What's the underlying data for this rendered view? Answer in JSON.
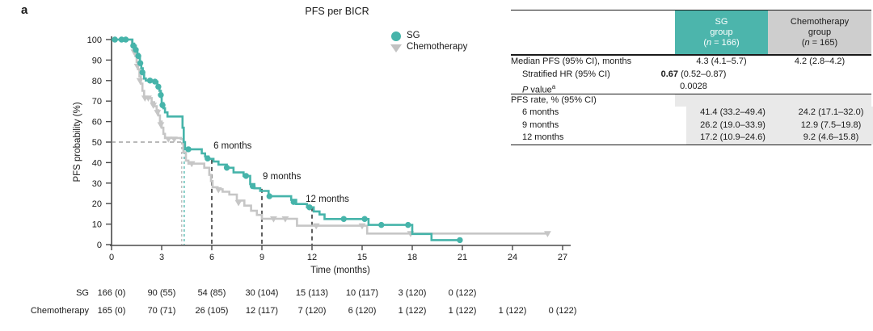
{
  "panel_label": "a",
  "colors": {
    "sg": "#46b4aa",
    "chemo_curve": "#c6c6c6",
    "sg_header_bg": "#4cb5ac",
    "chemo_header_bg": "#cecece",
    "section_bg": "#e9e9e9",
    "axis": "#4a4a4a",
    "dash_gray": "#909090",
    "dash_dark": "#2a2a2a"
  },
  "chart_data": {
    "type": "line",
    "subtype": "kaplan-meier-step",
    "title": "PFS per BICR",
    "xlabel": "Time (months)",
    "ylabel": "PFS probability (%)",
    "xlim": [
      0,
      27
    ],
    "ylim": [
      0,
      100
    ],
    "xticks": [
      0,
      3,
      6,
      9,
      12,
      15,
      18,
      21,
      24,
      27
    ],
    "yticks": [
      0,
      10,
      20,
      30,
      40,
      50,
      60,
      70,
      80,
      90,
      100
    ],
    "grid": false,
    "legend_position": "top-inside",
    "series": [
      {
        "name": "Chemotherapy",
        "marker": "triangle-down",
        "color": "#c6c6c6",
        "steps": [
          [
            0,
            100
          ],
          [
            1.15,
            100
          ],
          [
            1.22,
            97.5
          ],
          [
            1.32,
            95
          ],
          [
            1.42,
            92
          ],
          [
            1.5,
            89
          ],
          [
            1.58,
            85.5
          ],
          [
            1.67,
            82
          ],
          [
            1.75,
            78.5
          ],
          [
            1.85,
            75
          ],
          [
            1.95,
            72
          ],
          [
            2.3,
            71.5
          ],
          [
            2.4,
            69.5
          ],
          [
            2.55,
            67.5
          ],
          [
            2.7,
            65.5
          ],
          [
            2.8,
            63
          ],
          [
            2.9,
            60
          ],
          [
            3.0,
            57
          ],
          [
            3.1,
            54
          ],
          [
            3.2,
            52
          ],
          [
            4.15,
            51.5
          ],
          [
            4.3,
            45
          ],
          [
            4.45,
            41
          ],
          [
            4.6,
            39.5
          ],
          [
            5.4,
            39.5
          ],
          [
            5.55,
            37.5
          ],
          [
            5.85,
            34
          ],
          [
            5.95,
            31
          ],
          [
            6.05,
            28
          ],
          [
            6.35,
            27
          ],
          [
            6.65,
            25.8
          ],
          [
            7.05,
            24.4
          ],
          [
            7.5,
            21.5
          ],
          [
            7.95,
            19
          ],
          [
            8.35,
            16.5
          ],
          [
            8.7,
            14.5
          ],
          [
            9.0,
            12.6
          ],
          [
            11.0,
            12.6
          ],
          [
            11.1,
            9.2
          ],
          [
            15.2,
            9.2
          ],
          [
            15.3,
            5.4
          ],
          [
            26.2,
            5.4
          ]
        ],
        "censor_marks": [
          [
            1.35,
            94
          ],
          [
            1.55,
            87
          ],
          [
            1.7,
            80
          ],
          [
            2.0,
            71.5
          ],
          [
            2.2,
            71.5
          ],
          [
            2.5,
            68
          ],
          [
            2.75,
            64.5
          ],
          [
            2.95,
            58.5
          ],
          [
            3.4,
            51.5
          ],
          [
            3.75,
            51.5
          ],
          [
            4.8,
            39.5
          ],
          [
            6.4,
            26.8
          ],
          [
            7.6,
            20.5
          ],
          [
            9.7,
            12.6
          ],
          [
            10.4,
            12.6
          ],
          [
            12.25,
            9.2
          ],
          [
            15.0,
            9.2
          ],
          [
            17.9,
            5.4
          ],
          [
            26.1,
            5.4
          ]
        ]
      },
      {
        "name": "SG",
        "marker": "circle",
        "color": "#46b4aa",
        "steps": [
          [
            0,
            100
          ],
          [
            1.2,
            100
          ],
          [
            1.25,
            98
          ],
          [
            1.35,
            97
          ],
          [
            1.45,
            95
          ],
          [
            1.55,
            93
          ],
          [
            1.62,
            91
          ],
          [
            1.7,
            88.5
          ],
          [
            1.78,
            86
          ],
          [
            1.87,
            83.5
          ],
          [
            1.95,
            81
          ],
          [
            2.05,
            80
          ],
          [
            2.6,
            79.5
          ],
          [
            2.75,
            77.5
          ],
          [
            2.87,
            75
          ],
          [
            2.95,
            72
          ],
          [
            3.0,
            69
          ],
          [
            3.1,
            66.5
          ],
          [
            3.2,
            64.5
          ],
          [
            3.35,
            62.5
          ],
          [
            4.2,
            62.5
          ],
          [
            4.25,
            57
          ],
          [
            4.32,
            50
          ],
          [
            4.4,
            46.5
          ],
          [
            5.3,
            46.5
          ],
          [
            5.4,
            44.5
          ],
          [
            5.6,
            43
          ],
          [
            5.8,
            41.8
          ],
          [
            6.1,
            40.5
          ],
          [
            6.4,
            39
          ],
          [
            6.9,
            37.5
          ],
          [
            7.3,
            35.2
          ],
          [
            7.9,
            33.5
          ],
          [
            8.3,
            29.5
          ],
          [
            8.55,
            27.5
          ],
          [
            8.9,
            26.2
          ],
          [
            9.4,
            23.6
          ],
          [
            10.75,
            21.8
          ],
          [
            11.05,
            19.8
          ],
          [
            11.7,
            18.2
          ],
          [
            12.1,
            16.2
          ],
          [
            12.45,
            14.7
          ],
          [
            12.75,
            12.5
          ],
          [
            15.3,
            12.5
          ],
          [
            15.38,
            9.6
          ],
          [
            17.9,
            9.6
          ],
          [
            18.0,
            5.2
          ],
          [
            19.1,
            5.2
          ],
          [
            19.15,
            2.2
          ],
          [
            20.9,
            2.2
          ]
        ],
        "censor_marks": [
          [
            0.2,
            100
          ],
          [
            0.6,
            100
          ],
          [
            0.85,
            100
          ],
          [
            1.3,
            97
          ],
          [
            1.45,
            95
          ],
          [
            1.6,
            92
          ],
          [
            1.72,
            88.5
          ],
          [
            1.85,
            84
          ],
          [
            2.3,
            80
          ],
          [
            2.6,
            79.5
          ],
          [
            2.8,
            77
          ],
          [
            2.95,
            73
          ],
          [
            3.05,
            68
          ],
          [
            4.6,
            46.5
          ],
          [
            5.75,
            42
          ],
          [
            6.9,
            37.5
          ],
          [
            8.05,
            33.5
          ],
          [
            8.45,
            28.5
          ],
          [
            9.45,
            23.6
          ],
          [
            10.9,
            20.8
          ],
          [
            11.85,
            18.2
          ],
          [
            13.9,
            12.5
          ],
          [
            15.15,
            12.5
          ],
          [
            16.15,
            9.6
          ],
          [
            17.75,
            9.6
          ],
          [
            20.85,
            2.2
          ]
        ]
      }
    ],
    "legend": [
      {
        "label": "SG",
        "marker": "circle",
        "color": "#46b4aa"
      },
      {
        "label": "Chemotherapy",
        "marker": "triangle-down",
        "color": "#c2c2c2"
      }
    ],
    "annotations": [
      {
        "text": "6 months",
        "t": 6.1,
        "v": 50.4
      },
      {
        "text": "9 months",
        "t": 9.05,
        "v": 35.4
      },
      {
        "text": "12 months",
        "t": 11.62,
        "v": 24.4
      }
    ],
    "reference_lines": {
      "median_horizontal": {
        "v": 50,
        "t_end": 4.4
      },
      "median_verticals": [
        {
          "t": 4.2,
          "color": "#b5b5b5",
          "v_top": 50
        },
        {
          "t": 4.35,
          "color": "#46b4aa",
          "v_top": 50
        }
      ],
      "month_verticals": [
        {
          "t": 6,
          "v_top": 41.4
        },
        {
          "t": 9,
          "v_top": 27.2
        },
        {
          "t": 12,
          "v_top": 18.2
        }
      ]
    },
    "risk_table": {
      "rows": [
        {
          "label": "SG",
          "counts": [
            {
              "t": 0,
              "n": "166 (0)"
            },
            {
              "t": 3,
              "n": "90 (55)"
            },
            {
              "t": 6,
              "n": "54 (85)"
            },
            {
              "t": 9,
              "n": "30 (104)"
            },
            {
              "t": 12,
              "n": "15 (113)"
            },
            {
              "t": 15,
              "n": "10 (117)"
            },
            {
              "t": 18,
              "n": "3 (120)"
            },
            {
              "t": 21,
              "n": "0 (122)"
            }
          ]
        },
        {
          "label": "Chemotherapy",
          "counts": [
            {
              "t": 0,
              "n": "165 (0)"
            },
            {
              "t": 3,
              "n": "70 (71)"
            },
            {
              "t": 6,
              "n": "26 (105)"
            },
            {
              "t": 9,
              "n": "12 (117)"
            },
            {
              "t": 12,
              "n": "7 (120)"
            },
            {
              "t": 15,
              "n": "6 (120)"
            },
            {
              "t": 18,
              "n": "1 (122)"
            },
            {
              "t": 21,
              "n": "1 (122)"
            },
            {
              "t": 24,
              "n": "1 (122)"
            },
            {
              "t": 27,
              "n": "0 (122)"
            }
          ]
        }
      ]
    }
  },
  "stats_table": {
    "header": {
      "groups": [
        {
          "lines": [
            "SG",
            "group",
            "(n = 166)"
          ],
          "bg": "#4cb5ac",
          "color": "#ffffff"
        },
        {
          "lines": [
            "Chemotherapy",
            "group",
            "(n = 165)"
          ],
          "bg": "#cecece",
          "color": "#1a1a1a"
        }
      ]
    },
    "section1": [
      {
        "label": "Median PFS (95% CI), months",
        "indent": false,
        "sg": "4.3 (4.1–5.7)",
        "chemo": "4.2 (2.8–4.2)"
      },
      {
        "label": "Stratified HR (95% CI)",
        "indent": true,
        "span_value": "0.67 (0.52–0.87)",
        "bold_prefix": "0.67"
      },
      {
        "label": "P value",
        "label_italic_first": true,
        "label_sup": "a",
        "indent": true,
        "span_value": "0.0028"
      }
    ],
    "section2_header": "PFS rate, % (95% CI)",
    "section2": [
      {
        "label": "6 months",
        "sg": "41.4 (33.2–49.4)",
        "chemo": "24.2 (17.1–32.0)"
      },
      {
        "label": "9 months",
        "sg": "26.2 (19.0–33.9)",
        "chemo": "12.9 (7.5–19.8)"
      },
      {
        "label": "12 months",
        "sg": "17.2 (10.9–24.6)",
        "chemo": "9.2 (4.6–15.8)"
      }
    ]
  }
}
